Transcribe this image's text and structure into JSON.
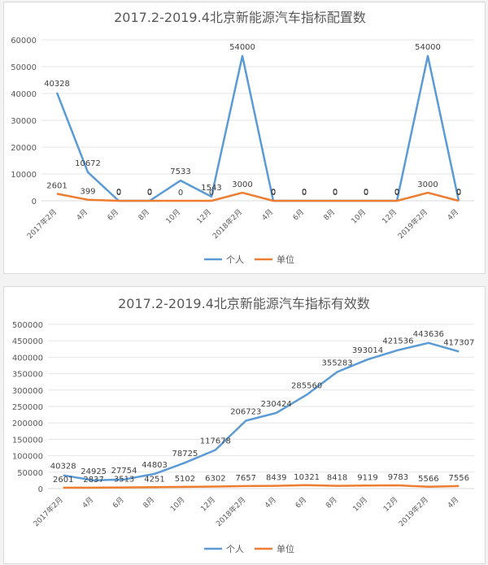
{
  "legend": [
    "个人",
    "单位"
  ],
  "colors": {
    "individual": "#5B9BD5",
    "unit": "#ED7D31"
  },
  "chart_data": [
    {
      "type": "line",
      "title": "2017.2-2019.4北京新能源汽车指标配置数",
      "categories": [
        "2017年2月",
        "4月",
        "6月",
        "8月",
        "10月",
        "12月",
        "2018年2月",
        "4月",
        "6月",
        "8月",
        "10月",
        "12月",
        "2019年2月",
        "4月"
      ],
      "series": [
        {
          "name": "个人",
          "values": [
            40328,
            10672,
            0,
            0,
            7533,
            1543,
            54000,
            0,
            0,
            0,
            0,
            0,
            54000,
            0
          ]
        },
        {
          "name": "单位",
          "values": [
            2601,
            399,
            0,
            0,
            0,
            0,
            3000,
            0,
            0,
            0,
            0,
            0,
            3000,
            0
          ]
        }
      ],
      "ylim": [
        0,
        60000
      ],
      "yticks": [
        0,
        10000,
        20000,
        30000,
        40000,
        50000,
        60000
      ],
      "grid": true,
      "legend_position": "bottom"
    },
    {
      "type": "line",
      "title": "2017.2-2019.4北京新能源汽车指标有效数",
      "categories": [
        "2017年2月",
        "4月",
        "6月",
        "8月",
        "10月",
        "12月",
        "2018年2月",
        "4月",
        "6月",
        "8月",
        "10月",
        "12月",
        "2019年2月",
        "4月"
      ],
      "series": [
        {
          "name": "个人",
          "values": [
            40328,
            24925,
            27754,
            44803,
            78725,
            117678,
            206723,
            230424,
            285560,
            355283,
            393014,
            421536,
            443636,
            417307
          ]
        },
        {
          "name": "单位",
          "values": [
            2601,
            2837,
            3513,
            4251,
            5102,
            6302,
            7657,
            8439,
            10321,
            8418,
            9119,
            9783,
            5566,
            7556
          ]
        }
      ],
      "ylim": [
        0,
        500000
      ],
      "yticks": [
        0,
        50000,
        100000,
        150000,
        200000,
        250000,
        300000,
        350000,
        400000,
        450000,
        500000
      ],
      "grid": true,
      "legend_position": "bottom"
    }
  ]
}
